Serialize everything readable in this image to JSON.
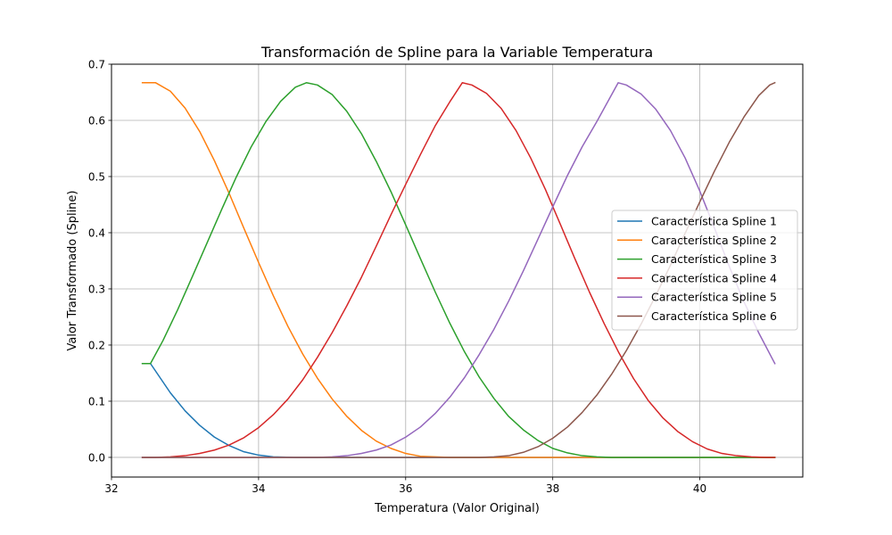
{
  "chart_data": {
    "type": "line",
    "title": "Transformación de Spline para la Variable Temperatura",
    "xlabel": "Temperatura (Valor Original)",
    "ylabel": "Valor Transformado (Spline)",
    "xlim": [
      32,
      41.4
    ],
    "ylim": [
      -0.035,
      0.7
    ],
    "xticks": [
      32,
      34,
      36,
      38,
      40
    ],
    "yticks": [
      0.0,
      0.1,
      0.2,
      0.3,
      0.4,
      0.5,
      0.6,
      0.7
    ],
    "x_range": [
      32.42,
      41.02
    ],
    "grid": true,
    "legend_position": "center-right",
    "series": [
      {
        "name": "Característica Spline 1",
        "color": "#1f77b4",
        "x": [
          32.42,
          32.51,
          32.53,
          32.8,
          33.0,
          33.2,
          33.4,
          33.6,
          33.8,
          34.0,
          34.2,
          34.5,
          35.0,
          36.0,
          41.02
        ],
        "y": [
          0.167,
          0.167,
          0.167,
          0.115,
          0.083,
          0.057,
          0.036,
          0.021,
          0.01,
          0.004,
          0.001,
          0.0,
          0.0,
          0.0,
          0.0
        ]
      },
      {
        "name": "Característica Spline 2",
        "color": "#ff7f0e",
        "x": [
          32.42,
          32.6,
          32.8,
          33.0,
          33.2,
          33.4,
          33.6,
          33.8,
          34.0,
          34.2,
          34.4,
          34.6,
          34.8,
          35.0,
          35.2,
          35.4,
          35.6,
          35.8,
          36.0,
          36.2,
          36.4,
          36.6,
          36.8,
          37.0,
          41.02
        ],
        "y": [
          0.667,
          0.667,
          0.652,
          0.622,
          0.58,
          0.528,
          0.47,
          0.408,
          0.347,
          0.288,
          0.233,
          0.184,
          0.141,
          0.104,
          0.073,
          0.048,
          0.029,
          0.016,
          0.007,
          0.002,
          0.001,
          0.0,
          0.0,
          0.0,
          0.0
        ]
      },
      {
        "name": "Característica Spline 3",
        "color": "#2ca02c",
        "x": [
          32.42,
          32.51,
          32.53,
          32.7,
          32.9,
          33.1,
          33.3,
          33.5,
          33.7,
          33.9,
          34.1,
          34.3,
          34.5,
          34.65,
          34.8,
          35.0,
          35.2,
          35.4,
          35.6,
          35.8,
          36.0,
          36.2,
          36.4,
          36.6,
          36.8,
          37.0,
          37.2,
          37.4,
          37.6,
          37.8,
          38.0,
          38.2,
          38.4,
          38.6,
          38.8,
          41.02
        ],
        "y": [
          0.167,
          0.167,
          0.167,
          0.208,
          0.263,
          0.322,
          0.382,
          0.442,
          0.5,
          0.553,
          0.598,
          0.634,
          0.659,
          0.667,
          0.663,
          0.646,
          0.616,
          0.576,
          0.527,
          0.473,
          0.414,
          0.354,
          0.295,
          0.239,
          0.188,
          0.143,
          0.105,
          0.073,
          0.049,
          0.03,
          0.016,
          0.008,
          0.003,
          0.001,
          0.0,
          0.0
        ]
      },
      {
        "name": "Característica Spline 4",
        "color": "#d62728",
        "x": [
          32.42,
          32.6,
          32.8,
          33.0,
          33.2,
          33.4,
          33.6,
          33.8,
          34.0,
          34.2,
          34.4,
          34.6,
          34.8,
          35.0,
          35.2,
          35.4,
          35.6,
          35.8,
          36.0,
          36.2,
          36.4,
          36.6,
          36.77,
          36.9,
          37.1,
          37.3,
          37.5,
          37.7,
          37.9,
          38.1,
          38.3,
          38.5,
          38.7,
          38.9,
          39.1,
          39.3,
          39.5,
          39.7,
          39.9,
          40.1,
          40.3,
          40.5,
          40.7,
          40.9,
          41.02
        ],
        "y": [
          0.0,
          0.0,
          0.001,
          0.003,
          0.007,
          0.013,
          0.022,
          0.035,
          0.053,
          0.076,
          0.104,
          0.138,
          0.178,
          0.222,
          0.27,
          0.321,
          0.376,
          0.432,
          0.486,
          0.539,
          0.59,
          0.633,
          0.667,
          0.663,
          0.648,
          0.621,
          0.582,
          0.533,
          0.477,
          0.416,
          0.354,
          0.294,
          0.238,
          0.186,
          0.14,
          0.101,
          0.07,
          0.046,
          0.028,
          0.015,
          0.007,
          0.003,
          0.001,
          0.0,
          0.0
        ]
      },
      {
        "name": "Característica Spline 5",
        "color": "#9467bd",
        "x": [
          32.42,
          34.5,
          34.8,
          35.0,
          35.2,
          35.4,
          35.6,
          35.8,
          36.0,
          36.2,
          36.4,
          36.6,
          36.8,
          37.0,
          37.2,
          37.4,
          37.6,
          37.8,
          38.0,
          38.2,
          38.4,
          38.6,
          38.89,
          39.0,
          39.2,
          39.4,
          39.6,
          39.8,
          40.0,
          40.2,
          40.4,
          40.6,
          40.8,
          41.02
        ],
        "y": [
          0.0,
          0.0,
          0.0,
          0.001,
          0.003,
          0.007,
          0.013,
          0.022,
          0.036,
          0.054,
          0.078,
          0.107,
          0.142,
          0.183,
          0.228,
          0.278,
          0.332,
          0.389,
          0.446,
          0.502,
          0.553,
          0.598,
          0.667,
          0.663,
          0.647,
          0.62,
          0.582,
          0.533,
          0.474,
          0.408,
          0.34,
          0.277,
          0.222,
          0.167
        ]
      },
      {
        "name": "Característica Spline 6",
        "color": "#8c564b",
        "x": [
          32.42,
          37.0,
          37.2,
          37.4,
          37.6,
          37.8,
          38.0,
          38.2,
          38.4,
          38.6,
          38.8,
          39.0,
          39.2,
          39.4,
          39.6,
          39.8,
          40.0,
          40.2,
          40.4,
          40.6,
          40.8,
          40.95,
          41.02
        ],
        "y": [
          0.0,
          0.0,
          0.001,
          0.003,
          0.009,
          0.019,
          0.034,
          0.054,
          0.08,
          0.111,
          0.148,
          0.19,
          0.237,
          0.288,
          0.342,
          0.399,
          0.455,
          0.51,
          0.561,
          0.606,
          0.644,
          0.663,
          0.667
        ]
      }
    ]
  }
}
